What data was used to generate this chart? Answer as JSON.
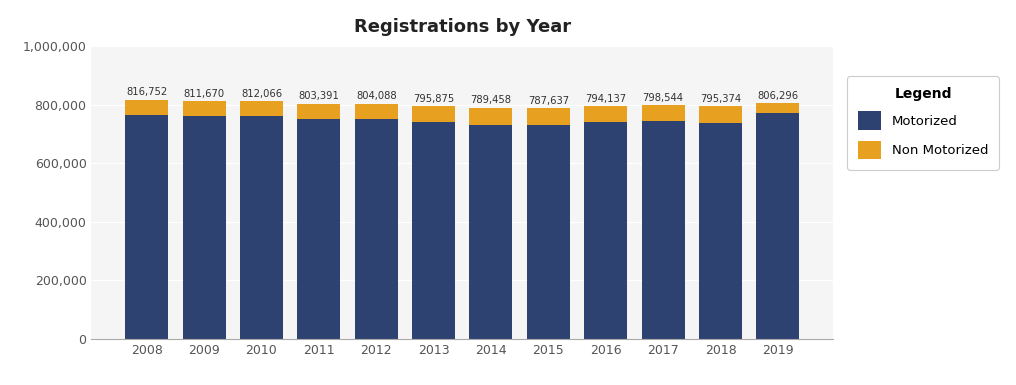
{
  "title": "Registrations by Year",
  "years": [
    2008,
    2009,
    2010,
    2011,
    2012,
    2013,
    2014,
    2015,
    2016,
    2017,
    2018,
    2019
  ],
  "totals": [
    816752,
    811670,
    812066,
    803391,
    804088,
    795875,
    789458,
    787637,
    794137,
    798544,
    795374,
    806296
  ],
  "motorized": [
    765000,
    760000,
    761000,
    752000,
    752000,
    742000,
    732000,
    731000,
    742000,
    743000,
    737000,
    770000
  ],
  "motorized_color": "#2e4272",
  "non_motorized_color": "#e8a020",
  "bar_width": 0.75,
  "ylim": [
    0,
    1000000
  ],
  "yticks": [
    0,
    200000,
    400000,
    600000,
    800000,
    1000000
  ],
  "plot_bg_color": "#f5f5f5",
  "outer_bg_color": "#ffffff",
  "grid_color": "#ffffff",
  "title_fontsize": 13,
  "legend_title": "Legend",
  "legend_labels": [
    "Motorized",
    "Non Motorized"
  ]
}
